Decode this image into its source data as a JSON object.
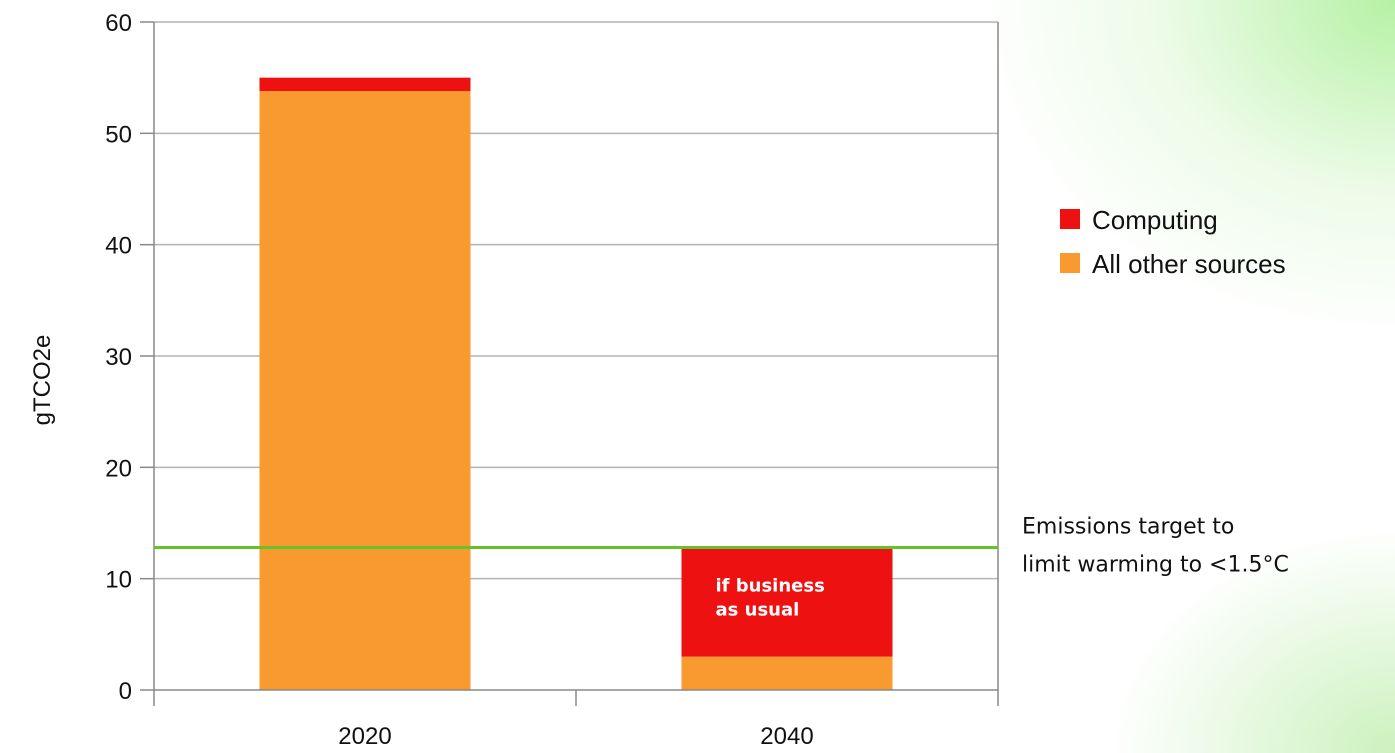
{
  "chart_data": {
    "type": "bar",
    "stacked": true,
    "categories": [
      "2020",
      "2040"
    ],
    "series": [
      {
        "name": "All other sources",
        "values": [
          53.8,
          3
        ],
        "color": "#f99a31"
      },
      {
        "name": "Computing",
        "values": [
          1.2,
          9.8
        ],
        "color": "#ee1111"
      }
    ],
    "ylabel": "gTCO2e",
    "xlabel": "",
    "ylim": [
      0,
      60
    ],
    "yticks": [
      0,
      10,
      20,
      30,
      40,
      50,
      60
    ],
    "grid": true,
    "legend_position": "right",
    "legend_order": [
      "Computing",
      "All other sources"
    ],
    "target_line": {
      "value": 12.8,
      "color": "#66c22a",
      "label_lines": [
        "Emissions target to",
        "limit warming to <1.5°C"
      ]
    },
    "bar_annotation": {
      "category": "2040",
      "series": "Computing",
      "lines": [
        "if business",
        "as usual"
      ]
    }
  }
}
